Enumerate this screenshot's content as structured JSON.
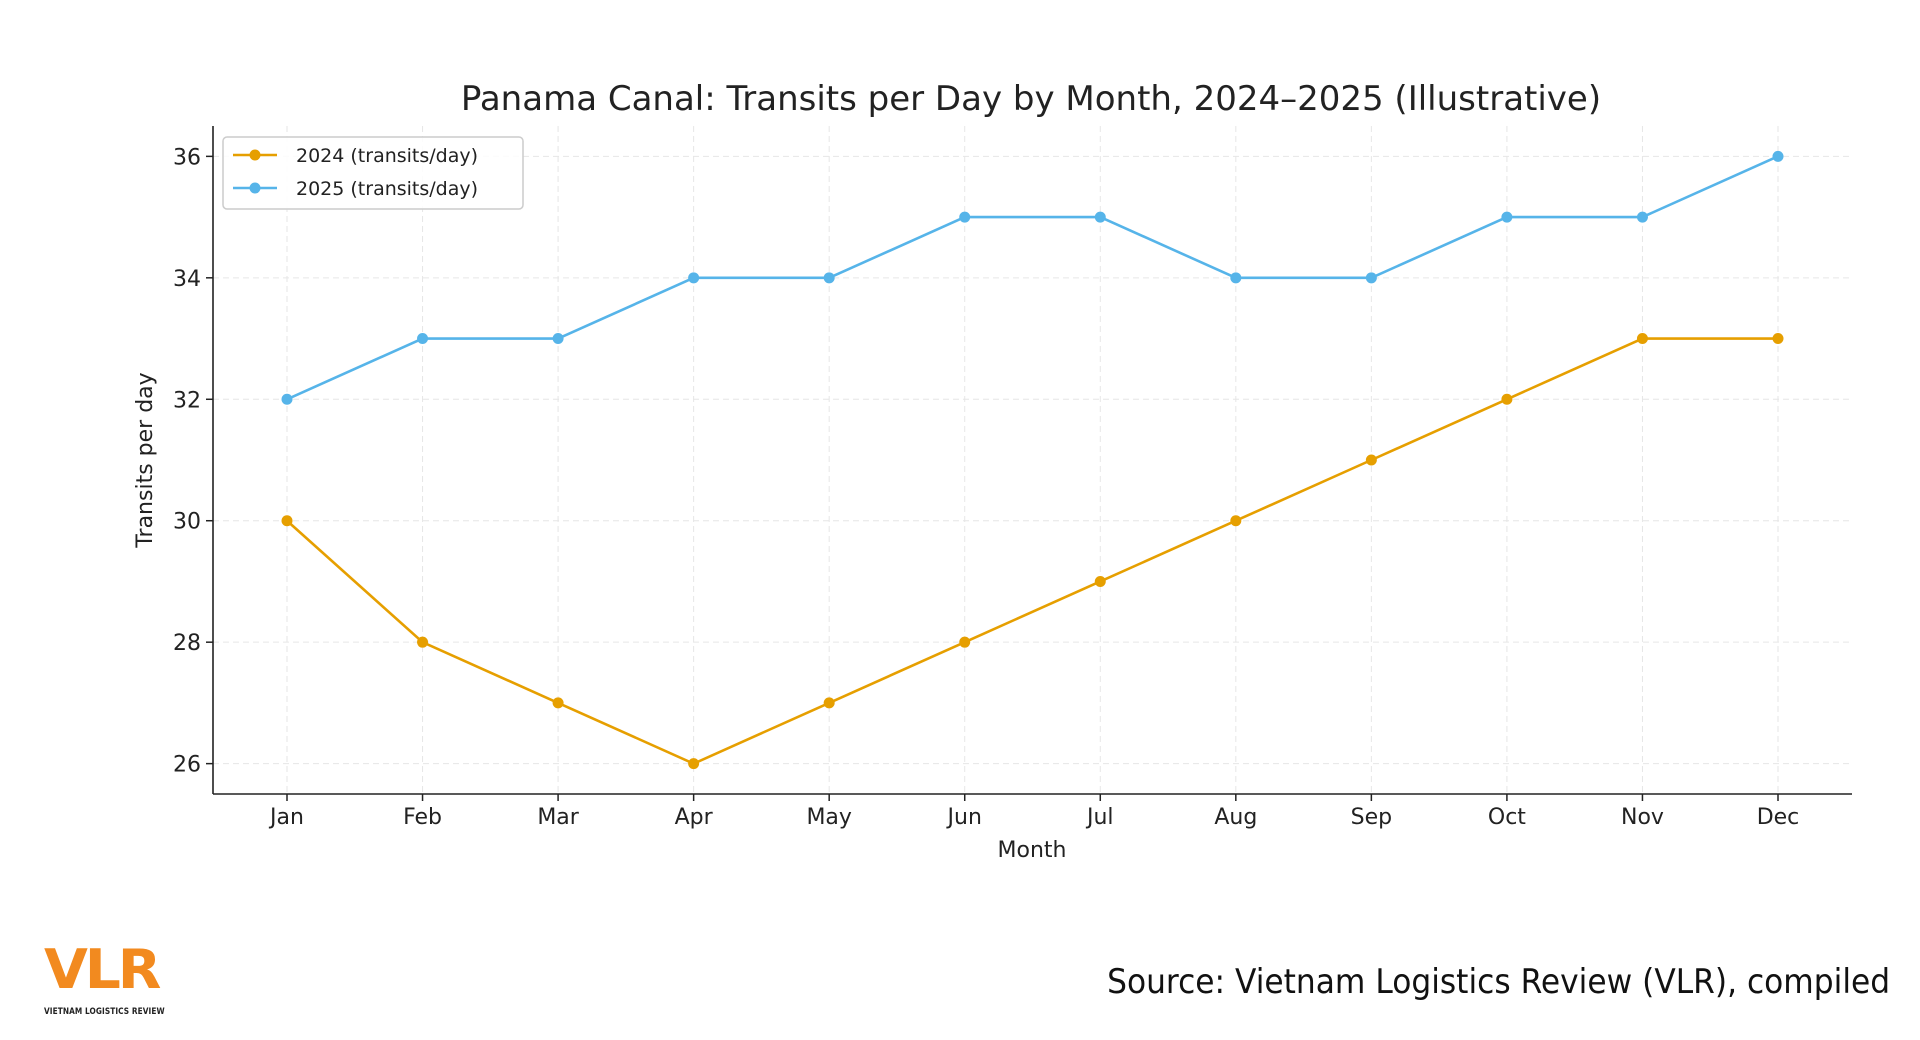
{
  "chart_data": {
    "type": "line",
    "title": "Panama Canal: Transits per Day by Month, 2024–2025 (Illustrative)",
    "xlabel": "Month",
    "ylabel": "Transits per day",
    "categories": [
      "Jan",
      "Feb",
      "Mar",
      "Apr",
      "May",
      "Jun",
      "Jul",
      "Aug",
      "Sep",
      "Oct",
      "Nov",
      "Dec"
    ],
    "yticks": [
      "26",
      "28",
      "30",
      "32",
      "34",
      "36"
    ],
    "ylim": [
      25.5,
      36.5
    ],
    "grid": true,
    "legend_position": "top-left",
    "series": [
      {
        "name": "2024 (transits/day)",
        "color": "#E69F00",
        "values": [
          30,
          28,
          27,
          26,
          27,
          28,
          29,
          30,
          31,
          32,
          33,
          33
        ]
      },
      {
        "name": "2025 (transits/day)",
        "color": "#56B4E9",
        "values": [
          32,
          33,
          33,
          34,
          34,
          35,
          35,
          34,
          34,
          35,
          35,
          36
        ]
      }
    ]
  },
  "source": "Source: Vietnam Logistics Review (VLR), compiled",
  "logo": {
    "text": "VLR",
    "subtitle": "VIETNAM LOGISTICS REVIEW",
    "color": "#F28A1F"
  }
}
